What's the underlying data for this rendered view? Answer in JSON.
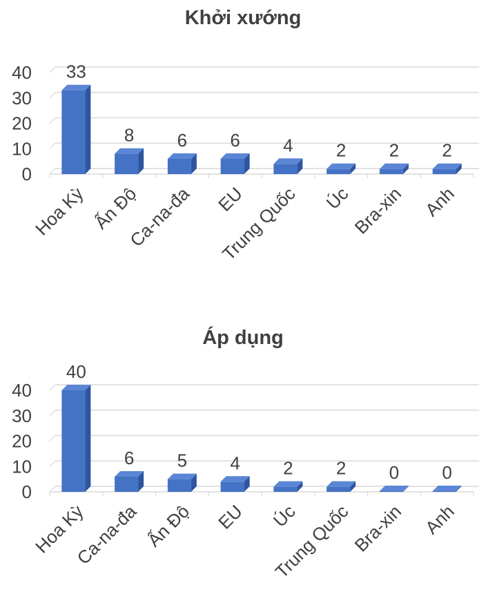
{
  "colors": {
    "bar": "#4472C4",
    "bar_dark": "#2F55A0",
    "bar_top": "#5B86D6",
    "grid": "#D9D9D9",
    "text": "#404040"
  },
  "chart_data": [
    {
      "type": "bar",
      "title": "Khởi xướng",
      "categories": [
        "Hoa Kỳ",
        "Ấn Độ",
        "Ca-na-đa",
        "EU",
        "Trung Quốc",
        "Úc",
        "Bra-xin",
        "Anh"
      ],
      "values": [
        33,
        8,
        6,
        6,
        4,
        2,
        2,
        2
      ],
      "data_labels": [
        "33",
        "8",
        "6",
        "6",
        "4",
        "2",
        "2",
        "2"
      ],
      "y_ticks": [
        "0",
        "10",
        "20",
        "30",
        "40"
      ],
      "ylim": [
        0,
        40
      ],
      "grid": true,
      "style": "3d"
    },
    {
      "type": "bar",
      "title": "Áp dụng",
      "categories": [
        "Hoa Kỳ",
        "Ca-na-đa",
        "Ấn Độ",
        "EU",
        "Úc",
        "Trung Quốc",
        "Bra-xin",
        "Anh"
      ],
      "values": [
        40,
        6,
        5,
        4,
        2,
        2,
        0,
        0
      ],
      "data_labels": [
        "40",
        "6",
        "5",
        "4",
        "2",
        "2",
        "0",
        "0"
      ],
      "y_ticks": [
        "0",
        "10",
        "20",
        "30",
        "40"
      ],
      "ylim": [
        0,
        40
      ],
      "grid": true,
      "style": "3d"
    }
  ]
}
